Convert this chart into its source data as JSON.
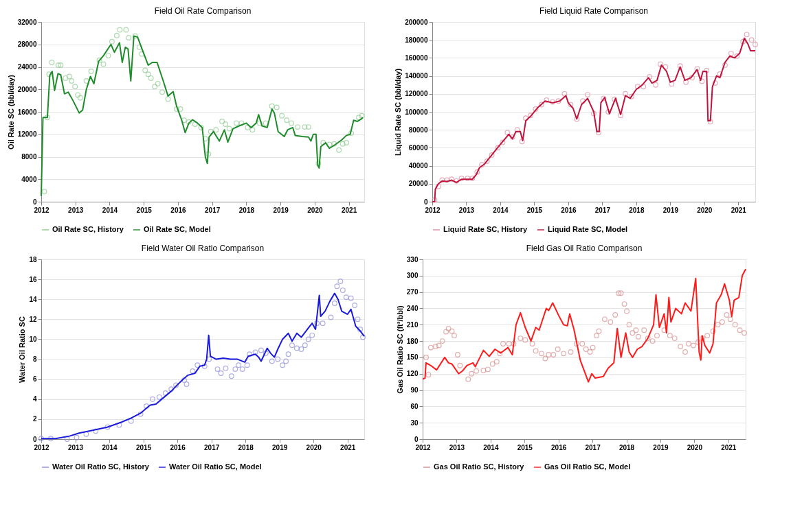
{
  "chart_data": [
    {
      "type": "line",
      "title": "Field Oil Rate Comparison",
      "ylabel": "Oil Rate SC (bbl/day)",
      "xlim": [
        2012,
        2021.45
      ],
      "xticks": [
        2012,
        2013,
        2014,
        2015,
        2016,
        2017,
        2018,
        2019,
        2020,
        2021
      ],
      "ylim": [
        0,
        32000
      ],
      "yticks": [
        0,
        4000,
        8000,
        12000,
        16000,
        20000,
        24000,
        28000,
        32000
      ],
      "grid": "y",
      "legend": "bottom",
      "series": [
        {
          "name": "Oil Rate SC, History",
          "type": "scatter",
          "marker": "circle",
          "color": "#8cc98e",
          "x": [
            2012.09,
            2012.18,
            2012.23,
            2012.31,
            2012.5,
            2012.57,
            2012.71,
            2012.82,
            2012.89,
            2012.99,
            2013.07,
            2013.14,
            2013.32,
            2013.46,
            2013.7,
            2013.82,
            2013.96,
            2014.07,
            2014.21,
            2014.3,
            2014.48,
            2014.56,
            2014.75,
            2014.87,
            2014.94,
            2015.04,
            2015.13,
            2015.21,
            2015.32,
            2015.41,
            2015.54,
            2015.71,
            2015.96,
            2016.07,
            2016.18,
            2016.32,
            2016.5,
            2016.68,
            2016.8,
            2016.89,
            2016.96,
            2017.11,
            2017.29,
            2017.39,
            2017.5,
            2017.71,
            2017.86,
            2018.04,
            2018.18,
            2018.39,
            2018.57,
            2018.75,
            2018.89,
            2019.04,
            2019.18,
            2019.32,
            2019.5,
            2019.71,
            2019.82,
            2020.11,
            2020.25,
            2020.43,
            2020.57,
            2020.71,
            2020.82,
            2020.93,
            2021.07,
            2021.29,
            2021.38
          ],
          "values": [
            1800,
            15000,
            22700,
            24800,
            24300,
            24300,
            22000,
            22300,
            21500,
            20500,
            19000,
            18500,
            21500,
            23200,
            25200,
            24500,
            26000,
            28500,
            29600,
            30600,
            30600,
            29200,
            29500,
            27500,
            26300,
            23400,
            22700,
            22000,
            20500,
            21000,
            19500,
            18300,
            16500,
            16500,
            14500,
            14200,
            13800,
            13200,
            11200,
            8500,
            12500,
            12800,
            14300,
            13800,
            13000,
            14000,
            14000,
            13200,
            12800,
            14000,
            14000,
            17000,
            16800,
            15300,
            14500,
            14000,
            13300,
            13300,
            13300,
            6800,
            10500,
            10200,
            10300,
            9200,
            10300,
            10500,
            12200,
            15000,
            15300
          ]
        },
        {
          "name": "Oil Rate SC, Model",
          "color": "#1e8c2a",
          "x": [
            2012.0,
            2012.05,
            2012.18,
            2012.25,
            2012.32,
            2012.39,
            2012.49,
            2012.57,
            2012.68,
            2012.79,
            2012.93,
            2013.11,
            2013.21,
            2013.32,
            2013.44,
            2013.54,
            2013.68,
            2013.82,
            2014.04,
            2014.14,
            2014.29,
            2014.37,
            2014.46,
            2014.54,
            2014.62,
            2014.71,
            2014.82,
            2014.96,
            2015.13,
            2015.25,
            2015.39,
            2015.57,
            2015.71,
            2015.86,
            2015.96,
            2016.11,
            2016.21,
            2016.32,
            2016.43,
            2016.57,
            2016.71,
            2016.8,
            2016.86,
            2016.91,
            2017.04,
            2017.21,
            2017.36,
            2017.46,
            2017.61,
            2017.79,
            2018.0,
            2018.14,
            2018.29,
            2018.36,
            2018.46,
            2018.61,
            2018.75,
            2018.82,
            2018.93,
            2019.11,
            2019.21,
            2019.36,
            2019.43,
            2019.64,
            2019.82,
            2019.89,
            2019.96,
            2020.04,
            2020.09,
            2020.13,
            2020.18,
            2020.32,
            2020.43,
            2020.61,
            2020.79,
            2020.93,
            2021.04,
            2021.14,
            2021.25,
            2021.36,
            2021.41
          ],
          "values": [
            1000,
            15000,
            15000,
            22500,
            23200,
            19800,
            22800,
            22600,
            19200,
            19500,
            18000,
            15800,
            16300,
            20000,
            22300,
            21000,
            25000,
            26000,
            28000,
            26600,
            28300,
            24800,
            27500,
            27200,
            21500,
            29500,
            29300,
            27000,
            24300,
            24800,
            24800,
            21500,
            18800,
            19600,
            17000,
            14500,
            12300,
            14000,
            14600,
            14000,
            13200,
            8000,
            6800,
            11500,
            12500,
            10800,
            12800,
            10600,
            13000,
            13500,
            14000,
            13200,
            14000,
            15500,
            13500,
            13200,
            16500,
            15800,
            12500,
            11600,
            12800,
            13200,
            11800,
            11600,
            11500,
            10800,
            12000,
            12000,
            6500,
            6000,
            9800,
            10500,
            9500,
            10200,
            11000,
            11800,
            12000,
            14500,
            14300,
            14700,
            15000
          ]
        }
      ]
    },
    {
      "type": "line",
      "title": "Field Liquid Rate Comparison",
      "ylabel": "Liquid Rate SC (bbl/day)",
      "xlim": [
        2012,
        2021.5
      ],
      "xticks": [
        2012,
        2013,
        2014,
        2015,
        2016,
        2017,
        2018,
        2019,
        2020,
        2021
      ],
      "ylim": [
        0,
        200000
      ],
      "yticks": [
        0,
        20000,
        40000,
        60000,
        80000,
        100000,
        120000,
        140000,
        160000,
        180000,
        200000
      ],
      "grid": "y",
      "legend": "bottom",
      "series": [
        {
          "name": "Liquid Rate SC, History",
          "type": "scatter",
          "marker": "circle",
          "color": "#d98ca0",
          "x": [
            2012.07,
            2012.18,
            2012.29,
            2012.43,
            2012.57,
            2012.71,
            2012.86,
            2013.04,
            2013.18,
            2013.32,
            2013.46,
            2013.61,
            2013.75,
            2013.93,
            2014.07,
            2014.21,
            2014.36,
            2014.5,
            2014.64,
            2014.75,
            2014.89,
            2015.04,
            2015.21,
            2015.36,
            2015.54,
            2015.71,
            2015.89,
            2016.07,
            2016.25,
            2016.43,
            2016.57,
            2016.75,
            2016.89,
            2017.04,
            2017.18,
            2017.36,
            2017.54,
            2017.68,
            2017.86,
            2018.04,
            2018.21,
            2018.39,
            2018.57,
            2018.71,
            2018.86,
            2019.04,
            2019.29,
            2019.46,
            2019.64,
            2019.79,
            2019.93,
            2020.07,
            2020.18,
            2020.32,
            2020.46,
            2020.61,
            2020.79,
            2020.96,
            2021.14,
            2021.25,
            2021.39,
            2021.5
          ],
          "values": [
            2000,
            17000,
            24000,
            24000,
            25000,
            23000,
            26000,
            26000,
            26000,
            33000,
            41000,
            45000,
            52000,
            60000,
            66000,
            77000,
            72000,
            80000,
            67000,
            93000,
            96000,
            103000,
            108000,
            113000,
            111000,
            112000,
            120000,
            108000,
            92000,
            112000,
            119000,
            98000,
            77000,
            115000,
            100000,
            114000,
            96000,
            120000,
            117000,
            128000,
            128000,
            139000,
            130000,
            153000,
            150000,
            131000,
            151000,
            133000,
            138000,
            148000,
            134000,
            146000,
            89000,
            132000,
            142000,
            152000,
            165000,
            162000,
            178000,
            186000,
            180000,
            175000
          ]
        },
        {
          "name": "Liquid Rate SC, Model",
          "color": "#c0143c",
          "x": [
            2012.0,
            2012.07,
            2012.09,
            2012.18,
            2012.29,
            2012.43,
            2012.57,
            2012.71,
            2012.86,
            2013.18,
            2013.29,
            2013.39,
            2013.54,
            2013.75,
            2013.96,
            2014.14,
            2014.25,
            2014.36,
            2014.46,
            2014.59,
            2014.66,
            2014.75,
            2014.89,
            2015.11,
            2015.32,
            2015.54,
            2015.75,
            2015.93,
            2016.0,
            2016.14,
            2016.25,
            2016.39,
            2016.57,
            2016.75,
            2016.84,
            2016.91,
            2016.96,
            2017.07,
            2017.21,
            2017.39,
            2017.54,
            2017.68,
            2017.82,
            2018.0,
            2018.18,
            2018.36,
            2018.46,
            2018.61,
            2018.74,
            2018.89,
            2019.0,
            2019.14,
            2019.29,
            2019.43,
            2019.61,
            2019.79,
            2019.89,
            2019.96,
            2020.07,
            2020.11,
            2020.18,
            2020.24,
            2020.36,
            2020.46,
            2020.61,
            2020.75,
            2020.89,
            2021.04,
            2021.18,
            2021.29,
            2021.36,
            2021.5
          ],
          "values": [
            0,
            0,
            14000,
            20000,
            23000,
            22500,
            24000,
            21500,
            25000,
            25000,
            30000,
            38000,
            42000,
            52000,
            62000,
            70000,
            75000,
            70000,
            78000,
            78000,
            68000,
            90000,
            95000,
            105000,
            112000,
            110000,
            112000,
            118000,
            110000,
            104000,
            92000,
            108000,
            115000,
            100000,
            78000,
            78000,
            110000,
            116000,
            98000,
            115000,
            97000,
            118000,
            115000,
            125000,
            130000,
            138000,
            132000,
            135000,
            152000,
            145000,
            133000,
            135000,
            150000,
            135000,
            138000,
            147000,
            135000,
            145000,
            145000,
            90000,
            90000,
            128000,
            140000,
            138000,
            155000,
            162000,
            160000,
            165000,
            182000,
            175000,
            168000,
            168000
          ]
        }
      ]
    },
    {
      "type": "line",
      "title": "Field Water Oil Ratio Comparison",
      "ylabel": "Water Oil Ratio SC",
      "xlim": [
        2012,
        2021.49
      ],
      "xticks": [
        2012,
        2013,
        2014,
        2015,
        2016,
        2017,
        2018,
        2019,
        2020,
        2021
      ],
      "ylim": [
        0,
        18
      ],
      "yticks": [
        0,
        2,
        4,
        6,
        8,
        10,
        12,
        14,
        16,
        18
      ],
      "grid": "y",
      "legend": "bottom",
      "series": [
        {
          "name": "Water Oil Ratio SC, History",
          "type": "scatter",
          "marker": "circle",
          "color": "#8c8cd9",
          "x": [
            2012.0,
            2012.28,
            2012.76,
            2013.04,
            2013.32,
            2013.6,
            2013.95,
            2014.29,
            2014.64,
            2014.92,
            2015.09,
            2015.27,
            2015.47,
            2015.65,
            2015.82,
            2015.96,
            2016.2,
            2016.27,
            2016.45,
            2016.59,
            2016.8,
            2016.93,
            2017.18,
            2017.28,
            2017.42,
            2017.59,
            2017.7,
            2017.8,
            2017.91,
            2018.05,
            2018.12,
            2018.29,
            2018.46,
            2018.6,
            2018.78,
            2018.95,
            2019.09,
            2019.19,
            2019.26,
            2019.37,
            2019.51,
            2019.64,
            2019.75,
            2019.85,
            2019.96,
            2020.1,
            2020.27,
            2020.51,
            2020.62,
            2020.69,
            2020.79,
            2020.86,
            2020.96,
            2021.1,
            2021.21,
            2021.3,
            2021.37,
            2021.45
          ],
          "values": [
            0.05,
            0.05,
            0,
            0.15,
            0.5,
            0.8,
            1.2,
            1.4,
            1.8,
            2.5,
            3.3,
            4.0,
            4.2,
            4.6,
            5.0,
            5.4,
            5.9,
            5.5,
            6.8,
            7.4,
            7.3,
            8.0,
            7.0,
            6.6,
            7.1,
            6.3,
            7.0,
            7.4,
            7.0,
            7.4,
            8.5,
            8.7,
            8.9,
            8.6,
            7.8,
            8.0,
            7.4,
            7.8,
            8.5,
            9.4,
            9.1,
            9.0,
            9.4,
            10.0,
            10.4,
            11.6,
            11.6,
            12.2,
            13.6,
            15.3,
            15.8,
            14.9,
            14.2,
            14.1,
            13.4,
            12.0,
            11.0,
            10.2
          ]
        },
        {
          "name": "Water Oil Ratio SC, Model",
          "color": "#1a1adc",
          "x": [
            2012.0,
            2012.42,
            2012.83,
            2013.11,
            2013.53,
            2013.95,
            2014.36,
            2014.64,
            2014.92,
            2015.06,
            2015.2,
            2015.37,
            2015.61,
            2015.82,
            2015.99,
            2016.17,
            2016.31,
            2016.52,
            2016.66,
            2016.8,
            2016.86,
            2016.92,
            2016.97,
            2017.14,
            2017.35,
            2017.56,
            2017.77,
            2017.98,
            2018.08,
            2018.29,
            2018.39,
            2018.46,
            2018.64,
            2018.74,
            2018.85,
            2018.95,
            2019.09,
            2019.26,
            2019.37,
            2019.51,
            2019.64,
            2019.82,
            2019.96,
            2020.06,
            2020.17,
            2020.21,
            2020.34,
            2020.48,
            2020.62,
            2020.72,
            2020.83,
            2021.0,
            2021.1,
            2021.24,
            2021.38,
            2021.49
          ],
          "values": [
            0.05,
            0.05,
            0.3,
            0.6,
            0.9,
            1.2,
            1.7,
            2.1,
            2.6,
            3.0,
            3.4,
            3.5,
            4.2,
            4.8,
            5.4,
            6.0,
            6.4,
            6.6,
            7.3,
            7.4,
            8.0,
            10.4,
            8.3,
            8.0,
            8.1,
            8.0,
            8.0,
            7.7,
            8.3,
            8.5,
            8.2,
            7.8,
            9.1,
            8.6,
            8.2,
            9.0,
            10.0,
            10.6,
            9.8,
            10.6,
            10.2,
            11.0,
            11.6,
            11.0,
            14.4,
            12.3,
            12.8,
            13.8,
            14.6,
            14.0,
            12.8,
            12.5,
            13.0,
            11.3,
            10.8,
            10.3
          ]
        }
      ]
    },
    {
      "type": "line",
      "title": "Field Gas Oil Ratio Comparison",
      "ylabel": "Gas Oil Ratio SC (ft³/bbl)",
      "xlim": [
        2012,
        2021.51
      ],
      "xticks": [
        2012,
        2013,
        2014,
        2015,
        2016,
        2017,
        2018,
        2019,
        2020,
        2021
      ],
      "ylim": [
        0,
        330
      ],
      "yticks": [
        0,
        30,
        60,
        90,
        120,
        150,
        180,
        210,
        240,
        270,
        300,
        330
      ],
      "grid": "y",
      "legend": "bottom",
      "series": [
        {
          "name": "Gas Oil Ratio SC, History",
          "type": "scatter",
          "marker": "circle",
          "color": "#d98c8c",
          "x": [
            2012.1,
            2012.17,
            2012.24,
            2012.38,
            2012.48,
            2012.58,
            2012.69,
            2012.76,
            2012.86,
            2012.93,
            2013.03,
            2013.1,
            2013.34,
            2013.44,
            2013.58,
            2013.79,
            2013.92,
            2014.06,
            2014.18,
            2014.27,
            2014.37,
            2014.54,
            2014.68,
            2014.88,
            2015.02,
            2015.23,
            2015.33,
            2015.5,
            2015.61,
            2015.71,
            2015.85,
            2015.98,
            2016.15,
            2016.36,
            2016.53,
            2016.7,
            2016.81,
            2016.93,
            2017.01,
            2017.12,
            2017.19,
            2017.36,
            2017.53,
            2017.67,
            2017.77,
            2017.84,
            2017.94,
            2018.01,
            2018.08,
            2018.18,
            2018.28,
            2018.35,
            2018.52,
            2018.63,
            2018.77,
            2018.9,
            2019.11,
            2019.28,
            2019.42,
            2019.59,
            2019.73,
            2019.83,
            2019.97,
            2020.11,
            2020.24,
            2020.38,
            2020.55,
            2020.69,
            2020.82,
            2020.95,
            2021.06,
            2021.2,
            2021.34,
            2021.47
          ],
          "values": [
            150,
            118,
            168,
            170,
            172,
            180,
            197,
            203,
            198,
            190,
            155,
            135,
            110,
            120,
            125,
            126,
            128,
            138,
            142,
            157,
            175,
            175,
            175,
            185,
            182,
            175,
            162,
            157,
            148,
            155,
            155,
            165,
            157,
            160,
            175,
            175,
            165,
            160,
            168,
            190,
            198,
            220,
            215,
            228,
            268,
            268,
            248,
            235,
            210,
            195,
            200,
            188,
            200,
            185,
            180,
            190,
            200,
            190,
            185,
            170,
            160,
            175,
            172,
            178,
            185,
            190,
            198,
            210,
            215,
            228,
            220,
            210,
            200,
            195
          ]
        },
        {
          "name": "Gas Oil Ratio SC, Model",
          "color": "#ff1a1a",
          "x": [
            2012.0,
            2012.07,
            2012.1,
            2012.24,
            2012.41,
            2012.65,
            2012.76,
            2012.86,
            2013.06,
            2013.17,
            2013.3,
            2013.48,
            2013.55,
            2013.79,
            2013.96,
            2014.13,
            2014.3,
            2014.51,
            2014.64,
            2014.75,
            2014.88,
            2015.02,
            2015.19,
            2015.33,
            2015.43,
            2015.64,
            2015.71,
            2015.83,
            2016.02,
            2016.15,
            2016.26,
            2016.33,
            2016.46,
            2016.64,
            2016.88,
            2016.98,
            2017.08,
            2017.32,
            2017.46,
            2017.63,
            2017.73,
            2017.84,
            2017.98,
            2018.08,
            2018.18,
            2018.32,
            2018.46,
            2018.63,
            2018.8,
            2018.87,
            2018.97,
            2019.11,
            2019.18,
            2019.25,
            2019.31,
            2019.45,
            2019.62,
            2019.73,
            2019.9,
            2020.04,
            2020.14,
            2020.19,
            2020.23,
            2020.31,
            2020.45,
            2020.55,
            2020.65,
            2020.79,
            2020.89,
            2021.03,
            2021.1,
            2021.17,
            2021.31,
            2021.41,
            2021.51
          ],
          "values": [
            110,
            112,
            140,
            135,
            127,
            150,
            140,
            138,
            120,
            125,
            135,
            140,
            133,
            163,
            152,
            165,
            158,
            168,
            155,
            210,
            232,
            205,
            180,
            205,
            200,
            240,
            236,
            250,
            225,
            210,
            208,
            230,
            200,
            145,
            105,
            120,
            112,
            115,
            130,
            140,
            203,
            150,
            195,
            160,
            150,
            165,
            170,
            185,
            210,
            265,
            205,
            230,
            195,
            260,
            215,
            240,
            230,
            250,
            235,
            295,
            160,
            145,
            190,
            172,
            158,
            175,
            250,
            265,
            285,
            255,
            225,
            255,
            260,
            300,
            312
          ]
        }
      ]
    }
  ]
}
